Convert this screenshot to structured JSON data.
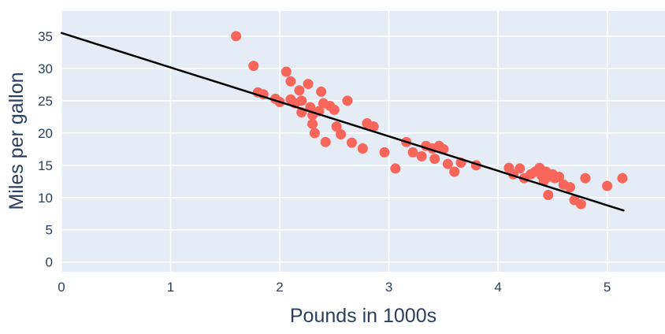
{
  "chart_data": {
    "type": "scatter",
    "title": "",
    "xlabel": "Pounds in 1000s",
    "ylabel": "Miles per gallon",
    "xlim": [
      0,
      5.53
    ],
    "ylim": [
      -1.5,
      38.9
    ],
    "xticks": [
      0,
      1,
      2,
      3,
      4,
      5
    ],
    "yticks": [
      0,
      5,
      10,
      15,
      20,
      25,
      30,
      35
    ],
    "grid": true,
    "legend": "none",
    "background_color": "#e5ecf6",
    "grid_color": "#ffffff",
    "point_color": "#f8655a",
    "line_color": "#000000",
    "text_color": "#2a3f5f",
    "points": [
      [
        1.6,
        35.0
      ],
      [
        1.76,
        30.4
      ],
      [
        1.8,
        26.3
      ],
      [
        1.85,
        26.0
      ],
      [
        1.96,
        25.3
      ],
      [
        2.0,
        24.8
      ],
      [
        2.06,
        29.5
      ],
      [
        2.1,
        28.0
      ],
      [
        2.1,
        25.2
      ],
      [
        2.14,
        24.6
      ],
      [
        2.18,
        26.6
      ],
      [
        2.2,
        25.0
      ],
      [
        2.2,
        23.2
      ],
      [
        2.26,
        27.6
      ],
      [
        2.28,
        24.0
      ],
      [
        2.3,
        22.8
      ],
      [
        2.3,
        21.4
      ],
      [
        2.32,
        20.0
      ],
      [
        2.36,
        23.4
      ],
      [
        2.38,
        26.4
      ],
      [
        2.4,
        24.6
      ],
      [
        2.42,
        18.6
      ],
      [
        2.46,
        24.2
      ],
      [
        2.5,
        23.6
      ],
      [
        2.52,
        21.0
      ],
      [
        2.56,
        19.8
      ],
      [
        2.62,
        25.0
      ],
      [
        2.66,
        18.5
      ],
      [
        2.76,
        17.6
      ],
      [
        2.8,
        21.5
      ],
      [
        2.86,
        21.0
      ],
      [
        2.96,
        17.0
      ],
      [
        3.06,
        14.5
      ],
      [
        3.16,
        18.6
      ],
      [
        3.22,
        17.0
      ],
      [
        3.3,
        16.4
      ],
      [
        3.34,
        18.0
      ],
      [
        3.4,
        17.6
      ],
      [
        3.42,
        16.0
      ],
      [
        3.46,
        18.0
      ],
      [
        3.5,
        17.5
      ],
      [
        3.54,
        15.2
      ],
      [
        3.6,
        14.0
      ],
      [
        3.66,
        15.4
      ],
      [
        3.8,
        15.0
      ],
      [
        4.1,
        14.6
      ],
      [
        4.14,
        13.6
      ],
      [
        4.2,
        14.5
      ],
      [
        4.24,
        13.0
      ],
      [
        4.3,
        13.6
      ],
      [
        4.34,
        14.0
      ],
      [
        4.38,
        14.6
      ],
      [
        4.4,
        13.4
      ],
      [
        4.42,
        12.6
      ],
      [
        4.44,
        14.0
      ],
      [
        4.46,
        13.2
      ],
      [
        4.46,
        10.4
      ],
      [
        4.5,
        13.6
      ],
      [
        4.52,
        13.0
      ],
      [
        4.56,
        13.2
      ],
      [
        4.6,
        12.0
      ],
      [
        4.66,
        11.6
      ],
      [
        4.7,
        9.6
      ],
      [
        4.76,
        9.0
      ],
      [
        4.8,
        13.0
      ],
      [
        5.0,
        11.8
      ],
      [
        5.14,
        13.0
      ]
    ],
    "regression_line": {
      "x1": 0,
      "y1": 35.5,
      "x2": 5.15,
      "y2": 8.0
    }
  }
}
